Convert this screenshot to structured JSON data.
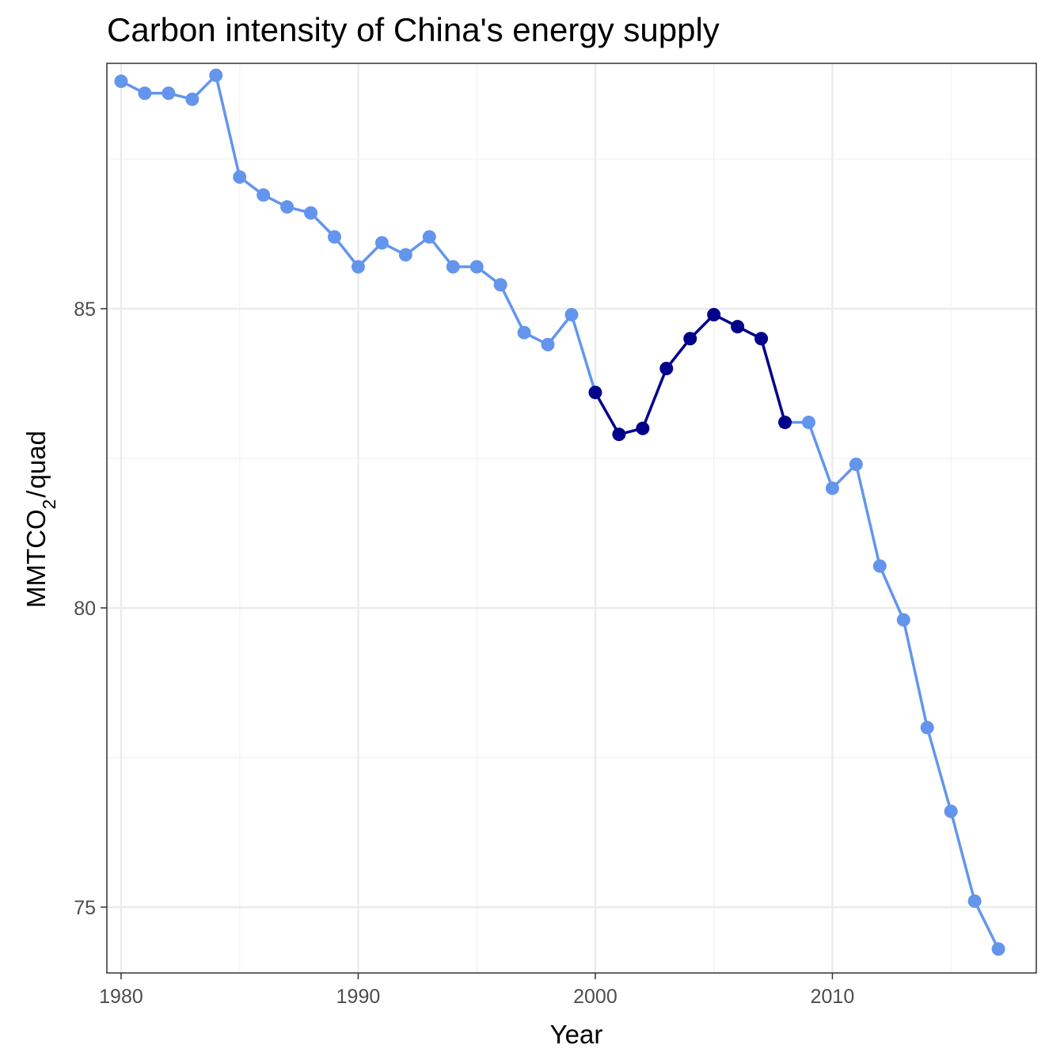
{
  "chart_data": {
    "type": "line",
    "title": "Carbon intensity of China's energy supply",
    "xlabel": "Year",
    "ylabel": {
      "main": "MMTCO",
      "subscript": "2",
      "suffix": "quad"
    },
    "xlim": [
      1979.4,
      2018.6
    ],
    "ylim": [
      73.9,
      89.1
    ],
    "x_ticks": [
      1980,
      1990,
      2000,
      2010
    ],
    "y_ticks": [
      75,
      80,
      85
    ],
    "grid": true,
    "colors": {
      "light": "#6495ED",
      "dark": "#00008B"
    },
    "x": [
      1980,
      1981,
      1982,
      1983,
      1984,
      1985,
      1986,
      1987,
      1988,
      1989,
      1990,
      1991,
      1992,
      1993,
      1994,
      1995,
      1996,
      1997,
      1998,
      1999,
      2000,
      2001,
      2002,
      2003,
      2004,
      2005,
      2006,
      2007,
      2008,
      2009,
      2010,
      2011,
      2012,
      2013,
      2014,
      2015,
      2016,
      2017
    ],
    "values": [
      88.8,
      88.6,
      88.6,
      88.5,
      88.9,
      87.2,
      86.9,
      86.7,
      86.6,
      86.2,
      85.7,
      86.1,
      85.9,
      86.2,
      85.7,
      85.7,
      85.4,
      84.6,
      84.4,
      84.9,
      83.6,
      82.9,
      83.0,
      84.0,
      84.5,
      84.9,
      84.7,
      84.5,
      83.1,
      83.1,
      82.0,
      82.4,
      80.7,
      79.8,
      78.0,
      76.6,
      75.1,
      74.3
    ],
    "highlight_range": [
      2000,
      2008
    ]
  }
}
